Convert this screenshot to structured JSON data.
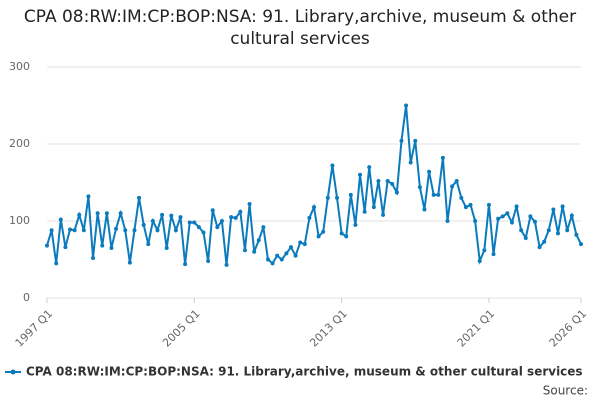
{
  "chart_data": {
    "type": "line",
    "title": "CPA 08:RW:IM:CP:BOP:NSA: 91. Library,archive, museum & other cultural services",
    "source": "Source:",
    "categories": [
      "1997 Q1",
      null,
      null,
      null,
      null,
      null,
      null,
      null,
      null,
      null,
      null,
      null,
      null,
      null,
      null,
      null,
      null,
      null,
      null,
      null,
      null,
      null,
      null,
      null,
      null,
      null,
      null,
      null,
      null,
      null,
      null,
      null,
      "2005 Q1",
      null,
      null,
      null,
      null,
      null,
      null,
      null,
      null,
      null,
      null,
      null,
      null,
      null,
      null,
      null,
      null,
      null,
      null,
      null,
      null,
      null,
      null,
      null,
      null,
      null,
      null,
      null,
      null,
      null,
      null,
      null,
      "2013 Q1",
      null,
      null,
      null,
      null,
      null,
      null,
      null,
      null,
      null,
      null,
      null,
      null,
      null,
      null,
      null,
      null,
      null,
      null,
      null,
      null,
      null,
      null,
      null,
      null,
      null,
      null,
      null,
      null,
      null,
      null,
      null,
      "2021 Q1",
      null,
      null,
      null,
      null,
      null,
      null,
      null,
      null,
      null,
      null,
      null,
      null,
      null,
      null,
      null,
      null,
      null,
      null,
      null,
      "2026 Q1"
    ],
    "series": [
      {
        "name": "CPA 08:RW:IM:CP:BOP:NSA: 91. Library,archive, museum & other cultural services",
        "color": "#0b7bbd",
        "values": [
          68,
          88,
          45,
          102,
          66,
          89,
          88,
          108,
          88,
          132,
          52,
          110,
          68,
          110,
          65,
          90,
          110,
          88,
          46,
          88,
          130,
          95,
          70,
          100,
          88,
          108,
          65,
          107,
          88,
          105,
          44,
          98,
          98,
          92,
          85,
          48,
          114,
          92,
          100,
          43,
          105,
          104,
          112,
          62,
          122,
          60,
          75,
          92,
          50,
          45,
          55,
          50,
          58,
          66,
          55,
          72,
          70,
          104,
          118,
          80,
          86,
          130,
          172,
          130,
          84,
          80,
          134,
          95,
          160,
          112,
          170,
          118,
          152,
          108,
          152,
          148,
          137,
          204,
          250,
          176,
          204,
          144,
          115,
          164,
          134,
          134,
          182,
          100,
          145,
          152,
          130,
          118,
          121,
          100,
          48,
          62,
          121,
          57,
          103,
          106,
          110,
          98,
          119,
          88,
          78,
          106,
          99,
          66,
          73,
          88,
          115,
          84,
          119,
          88,
          107,
          82,
          70
        ]
      }
    ],
    "ylim": [
      0,
      300
    ],
    "yticks": [
      0,
      100,
      200,
      300
    ],
    "grid": true
  }
}
